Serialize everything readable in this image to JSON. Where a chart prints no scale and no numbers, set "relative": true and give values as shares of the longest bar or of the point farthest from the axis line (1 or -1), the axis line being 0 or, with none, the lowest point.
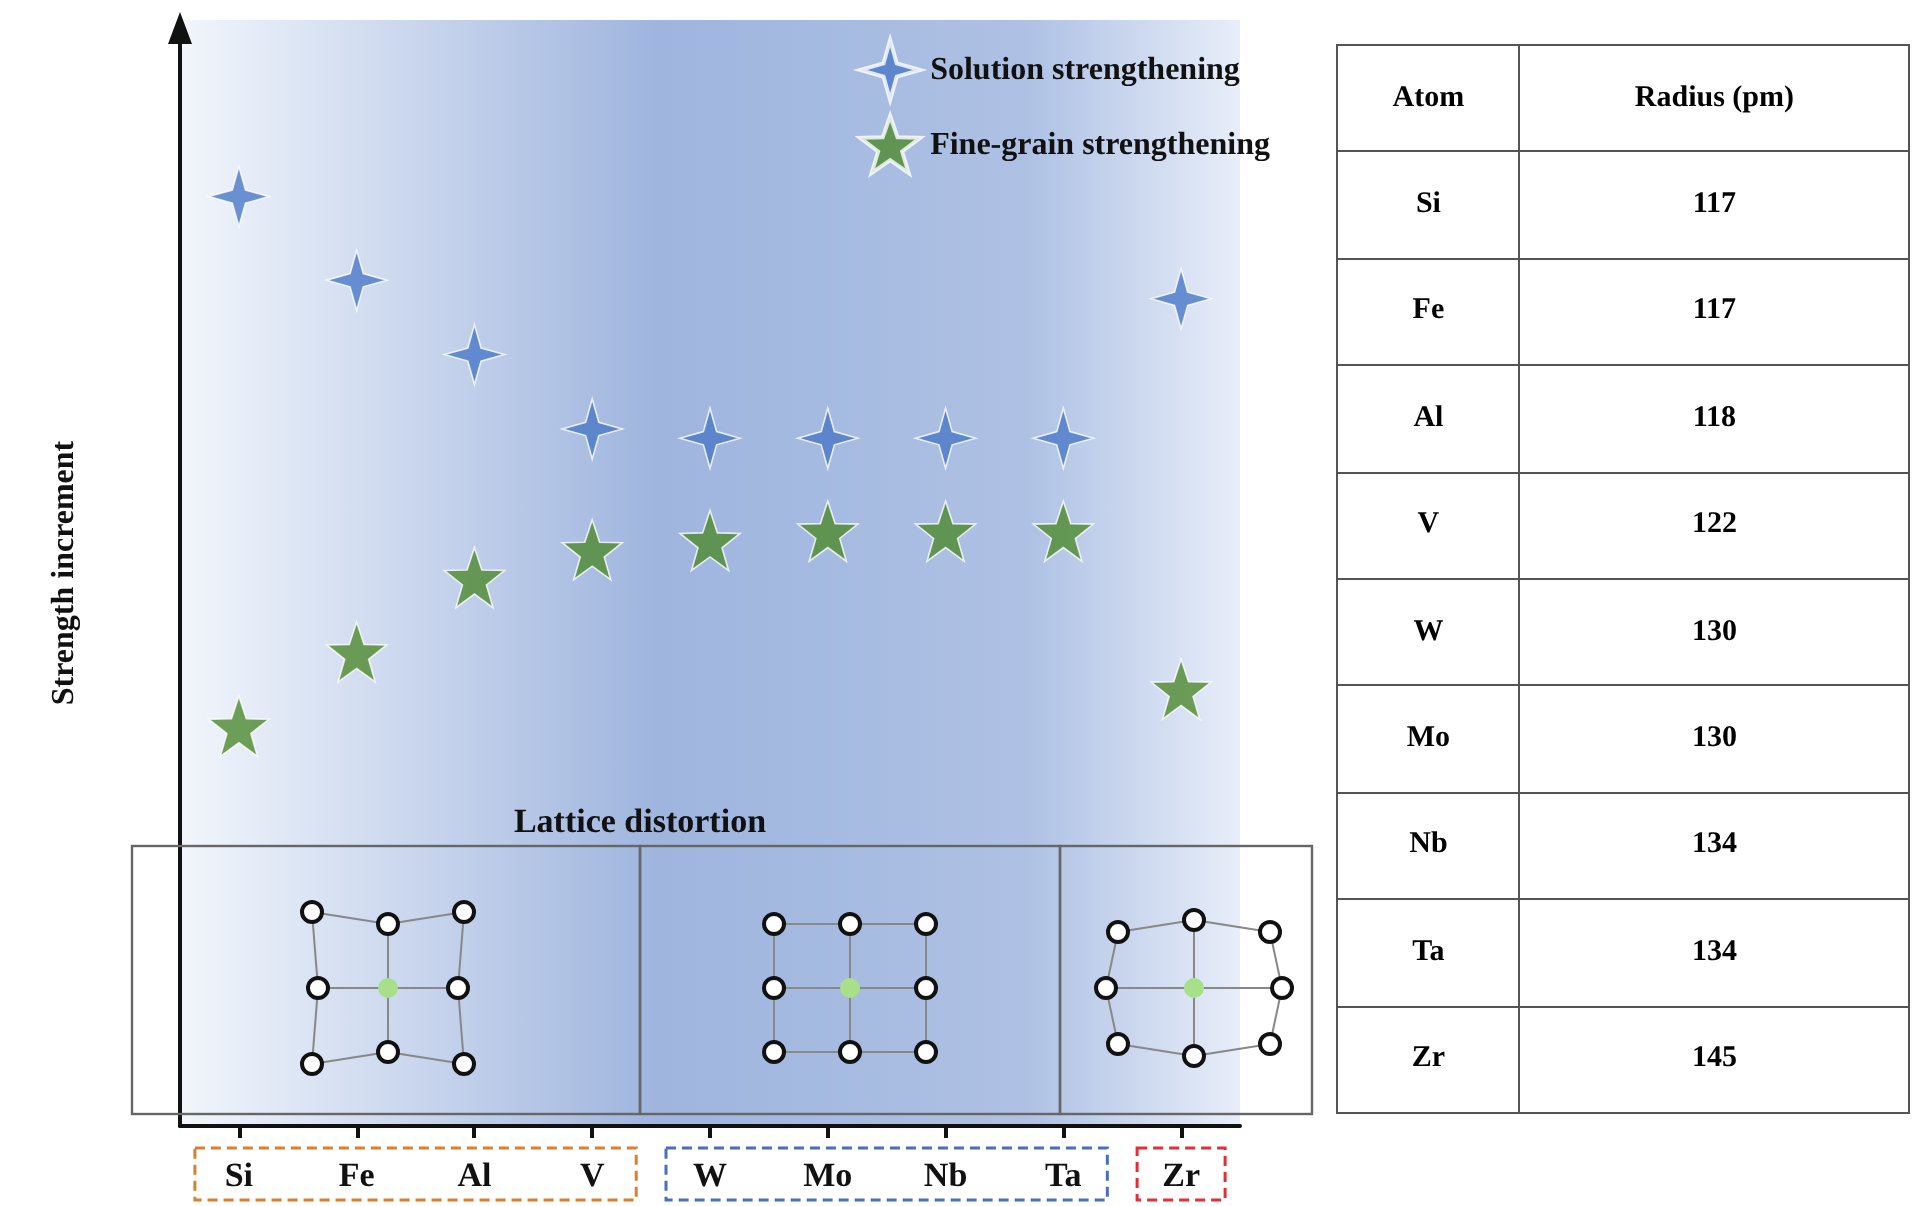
{
  "chart_data": [
    {
      "type": "scatter",
      "ylabel": "Strength increment",
      "categories": [
        "Si",
        "Fe",
        "Al",
        "V",
        "W",
        "Mo",
        "Nb",
        "Ta",
        "Zr"
      ],
      "relative": true,
      "legend": "top right",
      "annotations": [
        "Lattice distortion"
      ],
      "series": [
        {
          "name": "Solution strengthening",
          "color": "#4a78c8",
          "marker": "cross",
          "values": [
            1,
            0.91,
            0.83,
            0.75,
            0.74,
            0.74,
            0.74,
            0.74,
            0.89
          ]
        },
        {
          "name": "Fine-grain strengthening",
          "color": "#4e8a2e",
          "marker": "star",
          "values": [
            0.43,
            0.51,
            0.59,
            0.62,
            0.63,
            0.64,
            0.64,
            0.64,
            0.47
          ]
        }
      ]
    },
    {
      "type": "other",
      "xlabel": "Atom",
      "ylabel": "Radius (pm)",
      "data_labels": true,
      "categories": [
        "Si",
        "Fe",
        "Al",
        "V",
        "W",
        "Mo",
        "Nb",
        "Ta",
        "Zr"
      ],
      "values": [
        117,
        117,
        118,
        122,
        130,
        130,
        134,
        134,
        145
      ]
    }
  ]
}
